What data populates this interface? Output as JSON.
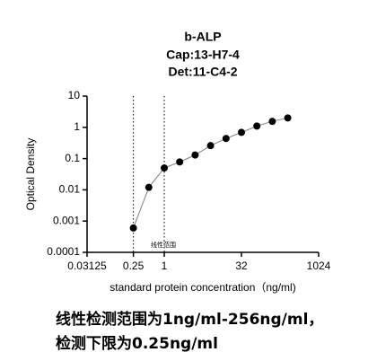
{
  "chart_data": {
    "type": "line",
    "title": [
      "b-ALP",
      "Cap:13-H7-4",
      "Det:11-C4-2"
    ],
    "x_label": "standard protein concentration（ng/ml)",
    "y_label": "Optical Density",
    "x": [
      0.25,
      0.5,
      1,
      2,
      4,
      8,
      16,
      32,
      64,
      128,
      256
    ],
    "values": [
      0.0006,
      0.012,
      0.05,
      0.078,
      0.13,
      0.26,
      0.44,
      0.69,
      1.1,
      1.55,
      2.0
    ],
    "color": "#000000",
    "line_color": "#808080",
    "xlim": [
      0.03125,
      1024
    ],
    "xscale": "log2",
    "xticks": [
      0.03125,
      0.25,
      1,
      32,
      1024
    ],
    "ylim": [
      0.0001,
      10
    ],
    "yscale": "log10",
    "yticks": [
      0.0001,
      0.001,
      0.01,
      0.1,
      1,
      10
    ],
    "ref_lines_x": [
      0.25,
      1
    ],
    "annotation": "线性范围",
    "caption": [
      "线性检测范围为1ng/ml-256ng/ml，",
      "检测下限为0.25ng/ml"
    ]
  }
}
